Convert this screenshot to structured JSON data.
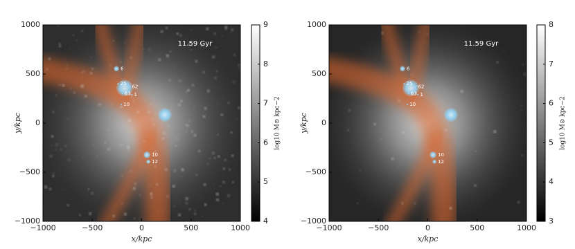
{
  "chart_data": [
    {
      "type": "image",
      "annotation": "11.59 Gyr",
      "xlabel": "x/kpc",
      "ylabel": "y/kpc",
      "xlim": [
        -1000,
        1000
      ],
      "ylim": [
        -1000,
        1000
      ],
      "xticks": [
        {
          "value": -1000,
          "label": "−1000"
        },
        {
          "value": -500,
          "label": "−500"
        },
        0,
        500,
        1000
      ],
      "yticks": [
        {
          "value": -1000,
          "label": "−1000"
        },
        {
          "value": -500,
          "label": "−500"
        },
        0,
        500,
        1000
      ],
      "colorbar": {
        "label": "log10 M⊙ kpc−2",
        "lim": [
          4,
          9
        ],
        "ticks": [
          4,
          5,
          6,
          7,
          8,
          9
        ]
      },
      "halo_color": "#8fd3f7",
      "filament_color": "#d9662d",
      "halos": [
        {
          "label": "6",
          "x": -256,
          "y": 554,
          "size": 28
        },
        {
          "label": null,
          "x": -172,
          "y": 358,
          "size": 85
        },
        {
          "label": "25",
          "x": -240,
          "y": 400,
          "size": 8
        },
        {
          "label": "62",
          "x": -120,
          "y": 370,
          "size": 8
        },
        {
          "label": "63",
          "x": -195,
          "y": 300,
          "size": 8
        },
        {
          "label": "1",
          "x": -100,
          "y": 290,
          "size": 8
        },
        {
          "label": "10",
          "x": -207,
          "y": 190,
          "size": 8
        },
        {
          "label": null,
          "x": 235,
          "y": 84,
          "size": 70
        },
        {
          "label": "10",
          "x": 53,
          "y": -323,
          "size": 35
        },
        {
          "label": "12",
          "x": 67,
          "y": -393,
          "size": 21
        }
      ]
    },
    {
      "type": "image",
      "annotation": "11.59 Gyr",
      "xlabel": "x/kpc",
      "ylabel": "y/kpc",
      "xlim": [
        -1000,
        1000
      ],
      "ylim": [
        -1000,
        1000
      ],
      "xticks": [
        {
          "value": -1000,
          "label": "−1000"
        },
        {
          "value": -500,
          "label": "−500"
        },
        0,
        500,
        1000
      ],
      "yticks": [
        {
          "value": -1000,
          "label": "−1000"
        },
        {
          "value": -500,
          "label": "−500"
        },
        0,
        500,
        1000
      ],
      "colorbar": {
        "label": "log10 M⊙ kpc−2",
        "lim": [
          3,
          8
        ],
        "ticks": [
          3,
          4,
          5,
          6,
          7,
          8
        ]
      },
      "halo_color": "#8fd3f7",
      "filament_color": "#d9662d",
      "halos": [
        {
          "label": "6",
          "x": -256,
          "y": 554,
          "size": 28
        },
        {
          "label": null,
          "x": -172,
          "y": 358,
          "size": 85
        },
        {
          "label": "25",
          "x": -240,
          "y": 400,
          "size": 8
        },
        {
          "label": "62",
          "x": -120,
          "y": 370,
          "size": 8
        },
        {
          "label": "63",
          "x": -195,
          "y": 300,
          "size": 8
        },
        {
          "label": "1",
          "x": -100,
          "y": 290,
          "size": 8
        },
        {
          "label": "10",
          "x": -207,
          "y": 190,
          "size": 8
        },
        {
          "label": null,
          "x": 235,
          "y": 84,
          "size": 70
        },
        {
          "label": "10",
          "x": 53,
          "y": -323,
          "size": 35
        },
        {
          "label": "12",
          "x": 67,
          "y": -393,
          "size": 21
        }
      ]
    }
  ]
}
